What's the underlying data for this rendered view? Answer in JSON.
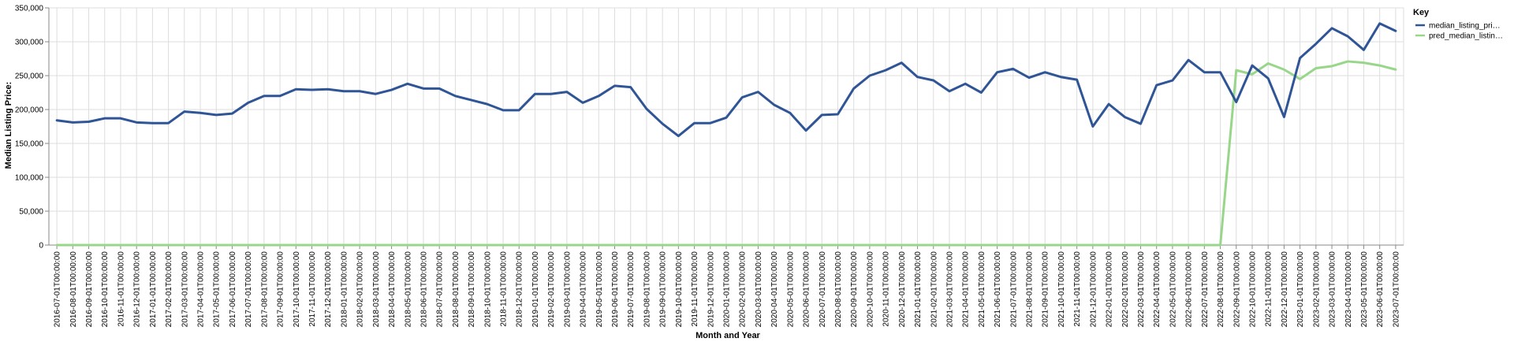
{
  "chart_data": {
    "type": "line",
    "xlabel": "Month and Year",
    "ylabel": "Median Listing Price:",
    "ylim": [
      0,
      350000
    ],
    "yticks": [
      "0",
      "50,000",
      "100,000",
      "150,000",
      "200,000",
      "250,000",
      "300,000",
      "350,000"
    ],
    "ytick_values": [
      0,
      50000,
      100000,
      150000,
      200000,
      250000,
      300000,
      350000
    ],
    "grid": true,
    "legend_title": "Key",
    "legend_position": "right",
    "categories": [
      "2016-07-01T00:00:00",
      "2016-08-01T00:00:00",
      "2016-09-01T00:00:00",
      "2016-10-01T00:00:00",
      "2016-11-01T00:00:00",
      "2016-12-01T00:00:00",
      "2017-01-01T00:00:00",
      "2017-02-01T00:00:00",
      "2017-03-01T00:00:00",
      "2017-04-01T00:00:00",
      "2017-05-01T00:00:00",
      "2017-06-01T00:00:00",
      "2017-07-01T00:00:00",
      "2017-08-01T00:00:00",
      "2017-09-01T00:00:00",
      "2017-10-01T00:00:00",
      "2017-11-01T00:00:00",
      "2017-12-01T00:00:00",
      "2018-01-01T00:00:00",
      "2018-02-01T00:00:00",
      "2018-03-01T00:00:00",
      "2018-04-01T00:00:00",
      "2018-05-01T00:00:00",
      "2018-06-01T00:00:00",
      "2018-07-01T00:00:00",
      "2018-08-01T00:00:00",
      "2018-09-01T00:00:00",
      "2018-10-01T00:00:00",
      "2018-11-01T00:00:00",
      "2018-12-01T00:00:00",
      "2019-01-01T00:00:00",
      "2019-02-01T00:00:00",
      "2019-03-01T00:00:00",
      "2019-04-01T00:00:00",
      "2019-05-01T00:00:00",
      "2019-06-01T00:00:00",
      "2019-07-01T00:00:00",
      "2019-08-01T00:00:00",
      "2019-09-01T00:00:00",
      "2019-10-01T00:00:00",
      "2019-11-01T00:00:00",
      "2019-12-01T00:00:00",
      "2020-01-01T00:00:00",
      "2020-02-01T00:00:00",
      "2020-03-01T00:00:00",
      "2020-04-01T00:00:00",
      "2020-05-01T00:00:00",
      "2020-06-01T00:00:00",
      "2020-07-01T00:00:00",
      "2020-08-01T00:00:00",
      "2020-09-01T00:00:00",
      "2020-10-01T00:00:00",
      "2020-11-01T00:00:00",
      "2020-12-01T00:00:00",
      "2021-01-01T00:00:00",
      "2021-02-01T00:00:00",
      "2021-03-01T00:00:00",
      "2021-04-01T00:00:00",
      "2021-05-01T00:00:00",
      "2021-06-01T00:00:00",
      "2021-07-01T00:00:00",
      "2021-08-01T00:00:00",
      "2021-09-01T00:00:00",
      "2021-10-01T00:00:00",
      "2021-11-01T00:00:00",
      "2021-12-01T00:00:00",
      "2022-01-01T00:00:00",
      "2022-02-01T00:00:00",
      "2022-03-01T00:00:00",
      "2022-04-01T00:00:00",
      "2022-05-01T00:00:00",
      "2022-06-01T00:00:00",
      "2022-07-01T00:00:00",
      "2022-08-01T00:00:00",
      "2022-09-01T00:00:00",
      "2022-10-01T00:00:00",
      "2022-11-01T00:00:00",
      "2022-12-01T00:00:00",
      "2023-01-01T00:00:00",
      "2023-02-01T00:00:00",
      "2023-03-01T00:00:00",
      "2023-04-01T00:00:00",
      "2023-05-01T00:00:00",
      "2023-06-01T00:00:00",
      "2023-07-01T00:00:00"
    ],
    "series": [
      {
        "name": "median_listing_pri…",
        "color": "#2f5597",
        "values": [
          184000,
          181000,
          182000,
          187000,
          187000,
          181000,
          180000,
          180000,
          197000,
          195000,
          192000,
          194000,
          210000,
          220000,
          220000,
          230000,
          229000,
          230000,
          227000,
          227000,
          223000,
          229000,
          238000,
          231000,
          231000,
          220000,
          214000,
          208000,
          199000,
          199000,
          223000,
          223000,
          226000,
          210000,
          220000,
          235000,
          233000,
          201000,
          179000,
          161000,
          180000,
          180000,
          188000,
          218000,
          226000,
          207000,
          195000,
          169000,
          192000,
          193000,
          231000,
          250000,
          258000,
          269000,
          248000,
          243000,
          227000,
          238000,
          225000,
          255000,
          260000,
          247000,
          255000,
          248000,
          244000,
          175000,
          208000,
          189000,
          179000,
          236000,
          243000,
          273000,
          255000,
          255000,
          211000,
          265000,
          246000,
          189000,
          276000,
          297000,
          320000,
          308000,
          288000,
          327000,
          316000
        ]
      },
      {
        "name": "pred_median_listin…",
        "color": "#98d68a",
        "values": [
          0,
          0,
          0,
          0,
          0,
          0,
          0,
          0,
          0,
          0,
          0,
          0,
          0,
          0,
          0,
          0,
          0,
          0,
          0,
          0,
          0,
          0,
          0,
          0,
          0,
          0,
          0,
          0,
          0,
          0,
          0,
          0,
          0,
          0,
          0,
          0,
          0,
          0,
          0,
          0,
          0,
          0,
          0,
          0,
          0,
          0,
          0,
          0,
          0,
          0,
          0,
          0,
          0,
          0,
          0,
          0,
          0,
          0,
          0,
          0,
          0,
          0,
          0,
          0,
          0,
          0,
          0,
          0,
          0,
          0,
          0,
          0,
          0,
          0,
          258000,
          252000,
          268000,
          259000,
          245000,
          261000,
          264000,
          271000,
          269000,
          265000,
          259000
        ]
      }
    ]
  }
}
